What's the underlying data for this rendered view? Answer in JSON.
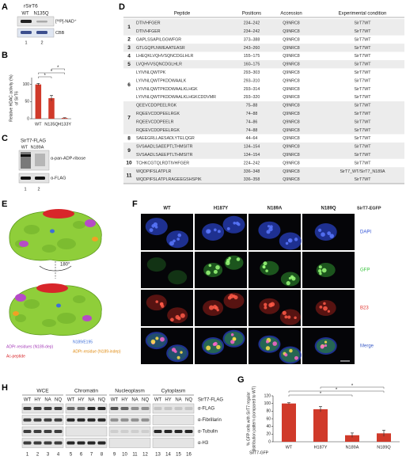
{
  "chart_data": [
    {
      "type": "bar",
      "label": "B",
      "ylabel": [
        "Relative HDAC activity (%)",
        "of SirT6"
      ],
      "categories": [
        "WT",
        "N135Q",
        "H133Y"
      ],
      "values": [
        100,
        60,
        2
      ],
      "errors": [
        3,
        8,
        1
      ],
      "ylim": [
        0,
        120
      ],
      "yticks": [
        0,
        50,
        100
      ],
      "color": "#d03a2a",
      "significance": [
        "*",
        "*",
        "*"
      ]
    },
    {
      "type": "bar",
      "label": "G",
      "ylabel": [
        "% GFP cells with SirT7 regular",
        "distribution pattern (compared to WT)"
      ],
      "xlabel": "SirT7-GFP",
      "categories": [
        "WT",
        "H187Y",
        "N189A",
        "N189Q"
      ],
      "values": [
        100,
        85,
        17,
        22
      ],
      "errors": [
        2,
        7,
        6,
        8
      ],
      "ylim": [
        0,
        120
      ],
      "yticks": [
        0,
        20,
        40,
        60,
        80,
        100,
        120
      ],
      "color": "#d03a2a",
      "significance": [
        "*",
        "*",
        "*"
      ]
    }
  ],
  "panels": {
    "A": {
      "label": "A",
      "protein": "rSirT6",
      "lanes": [
        "WT",
        "N135Q"
      ],
      "bands": [
        "[³²P]-NAD⁺",
        "CBB"
      ],
      "lane_numbers": [
        "1",
        "2"
      ]
    },
    "C": {
      "label": "C",
      "construct": "SirT7-FLAG",
      "lanes": [
        "WT",
        "N189A"
      ],
      "bands": [
        "α-pan-ADP-ribose",
        "α-FLAG"
      ],
      "lane_numbers": [
        "1",
        "2"
      ]
    },
    "D": {
      "label": "D",
      "columns": [
        "Peptide",
        "Positions",
        "Accession",
        "Experimental condition"
      ],
      "groups": [
        {
          "number": "1",
          "rows": [
            [
              "DTIVHFGER",
              "234–242",
              "Q9NRC8",
              "SirT7WT"
            ],
            [
              "DTIVHFGER",
              "234–242",
              "Q9NRC8",
              "SirT7WT"
            ]
          ]
        },
        {
          "number": "2",
          "rows": [
            [
              "GAPLSSAPILGGWFGR",
              "373–388",
              "Q9NRC8",
              "SirT7WT"
            ]
          ]
        },
        {
          "number": "3",
          "rows": [
            [
              "GTLGQPLNWEAATEASR",
              "243–260",
              "Q9NRC8",
              "SirT7WT"
            ]
          ]
        },
        {
          "number": "4",
          "rows": [
            [
              "LHEQKLVQHVSQNCDGLHLR",
              "155–175",
              "Q9NRC8",
              "SirT7WT"
            ]
          ]
        },
        {
          "number": "5",
          "rows": [
            [
              "LVQHVVSQNCDGLHLR",
              "160–175",
              "Q9NRC8",
              "SirT7WT"
            ]
          ]
        },
        {
          "number": "6",
          "rows": [
            [
              "LYIVNLQWTPK",
              "293–303",
              "Q9NRC8",
              "SirT7WT"
            ],
            [
              "LYIVNLQWTPKDDWAALK",
              "293–310",
              "Q9NRC8",
              "SirT7WT"
            ],
            [
              "LYIVNLQWTPKDDWAALKLHGK",
              "293–314",
              "Q9NRC8",
              "SirT7WT"
            ],
            [
              "LYIVNLQWTPKDDWAALKLHGKCDDVMR",
              "293–320",
              "Q9NRC8",
              "SirT7WT"
            ]
          ]
        },
        {
          "number": "7",
          "rows": [
            [
              "QEEVCDDPEELRGK",
              "75–88",
              "Q9NRC8",
              "SirT7WT"
            ],
            [
              "RQEEVCDDPEELRGK",
              "74–88",
              "Q9NRC8",
              "SirT7WT"
            ],
            [
              "RQEEVCDDPEELR",
              "74–86",
              "Q9NRC8",
              "SirT7WT"
            ],
            [
              "RQEEVCDDPEELRGK",
              "74–88",
              "Q9NRC8",
              "SirT7WT"
            ]
          ]
        },
        {
          "number": "8",
          "rows": [
            [
              "SAEEGRLLAESADLYTELQGR",
              "44–64",
              "Q9NRC8",
              "SirT7WT"
            ]
          ]
        },
        {
          "number": "9",
          "rows": [
            [
              "SVSAADLSAEEPTLTHMSITR",
              "134–154",
              "Q9NRC8",
              "SirT7WT"
            ],
            [
              "SVSAADLSAEEPTLTHMSITR",
              "134–154",
              "Q9NRC8",
              "SirT7WT"
            ]
          ]
        },
        {
          "number": "10",
          "rows": [
            [
              "TCHKCGTQLRDTIVHFGER",
              "224–242",
              "Q9NRC8",
              "SirT7WT"
            ]
          ]
        },
        {
          "number": "11",
          "rows": [
            [
              "WQDPIFSLATPLR",
              "336–348",
              "Q9NRC8",
              "SirT7_WT/SirT7_N189A"
            ],
            [
              "WQDPIFSLATPLRAGEEGSHSPIK",
              "336–358",
              "Q9NRC8",
              "SirT7WT"
            ]
          ]
        }
      ]
    },
    "E": {
      "label": "E",
      "rotation": "180°",
      "legend": [
        "ADPr-residues (N189-dep)",
        "Ac-peptide",
        "N189/E195",
        "ADPr-residue (N189-indep)"
      ]
    },
    "F": {
      "label": "F",
      "columns": [
        "WT",
        "H187Y",
        "N189A",
        "N189Q"
      ],
      "construct": "SirT7-EGFP",
      "channels": [
        "DAPI",
        "GFP",
        "B23",
        "Merge"
      ]
    },
    "H": {
      "label": "H",
      "fractions": [
        "WCE",
        "Chromatin",
        "Nucleoplasm",
        "Cytoplasm"
      ],
      "construct": "SirT7-FLAG",
      "lanes": [
        "WT",
        "HY",
        "NA",
        "NQ"
      ],
      "antibodies": [
        "α-FLAG",
        "α-Fibrillarin",
        "α-Tubulin",
        "α-H3"
      ],
      "lane_numbers": [
        "1",
        "2",
        "3",
        "4",
        "5",
        "6",
        "7",
        "8",
        "9",
        "10",
        "11",
        "12",
        "13",
        "14",
        "15",
        "16"
      ]
    }
  }
}
